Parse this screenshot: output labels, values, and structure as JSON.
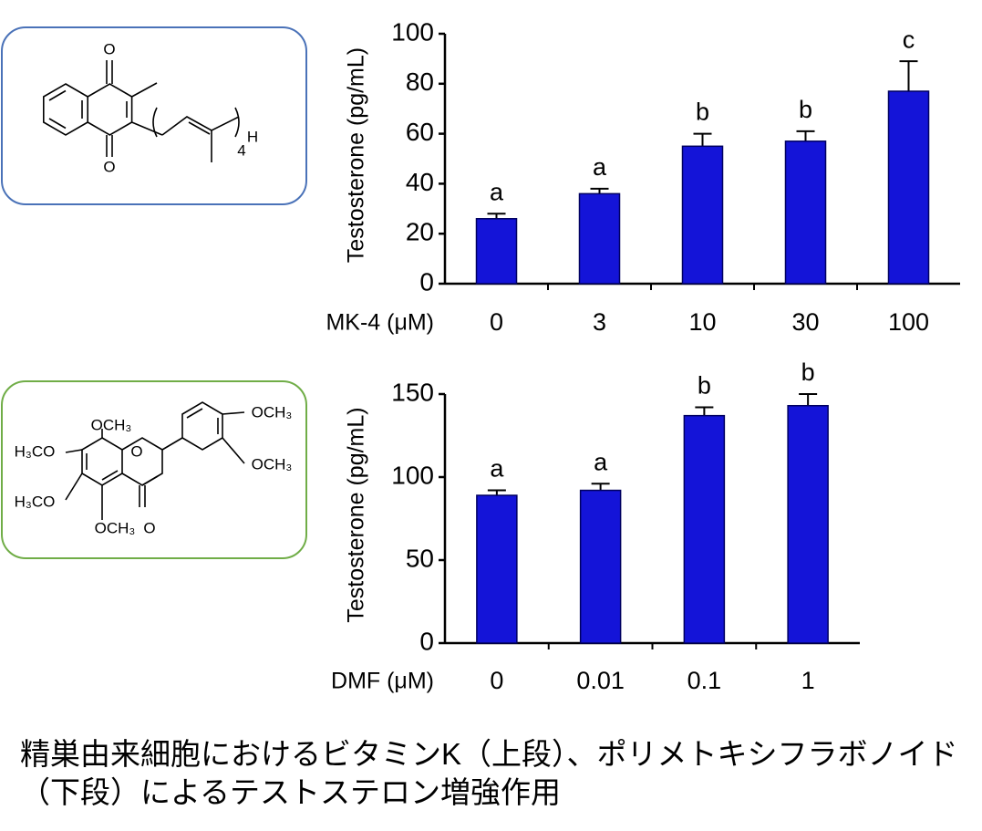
{
  "chart_data": [
    {
      "type": "bar",
      "y_label": "Testosterone (pg/mL)",
      "x_label": "MK-4 (μM)",
      "categories": [
        "0",
        "3",
        "10",
        "30",
        "100"
      ],
      "values": [
        26,
        36,
        55,
        57,
        77
      ],
      "errors": [
        2,
        2,
        5,
        4,
        12
      ],
      "letters": [
        "a",
        "a",
        "b",
        "b",
        "c"
      ],
      "color": "#1414d8",
      "ylim": [
        0,
        100
      ],
      "yticks": [
        0,
        20,
        40,
        60,
        80,
        100
      ]
    },
    {
      "type": "bar",
      "y_label": "Testosterone (pg/mL)",
      "x_label": "DMF (μM)",
      "categories": [
        "0",
        "0.01",
        "0.1",
        "1"
      ],
      "values": [
        89,
        92,
        137,
        143
      ],
      "errors": [
        3,
        4,
        5,
        7
      ],
      "letters": [
        "a",
        "a",
        "b",
        "b"
      ],
      "color": "#1414d8",
      "ylim": [
        0,
        150
      ],
      "yticks": [
        0,
        50,
        100,
        150
      ]
    }
  ],
  "structures": [
    {
      "labels": [
        "O",
        "O",
        "4",
        "H"
      ]
    },
    {
      "labels": [
        "OCH₃",
        "H₃CO",
        "O",
        "OCH₃",
        "OCH₃",
        "H₃CO",
        "OCH₃",
        "O"
      ]
    }
  ],
  "caption": [
    "精巣由来細胞におけるビタミンK（上段）、ポリメトキシフラボノイド",
    "（下段）によるテストステロン増強作用"
  ]
}
